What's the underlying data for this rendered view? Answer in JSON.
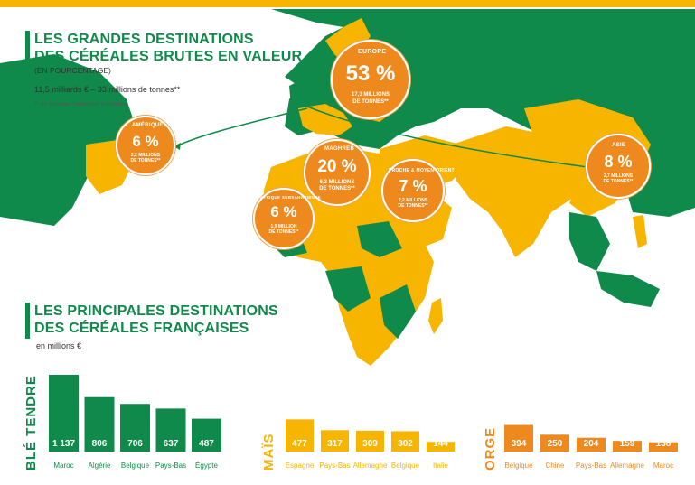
{
  "colors": {
    "green": "#0f8a4a",
    "yellow": "#f7b500",
    "orange": "#ee8a1d"
  },
  "header": {
    "title_line1": "LES GRANDES DESTINATIONS",
    "title_line2": "DES CÉRÉALES BRUTES EN VALEUR",
    "subtitle": "(EN POURCENTAGE)",
    "total": "11,5 milliards € – 33 millions de tonnes**",
    "footnote": "** de céréales françaises importées"
  },
  "section2": {
    "title_line1": "LES PRINCIPALES DESTINATIONS",
    "title_line2": "DES CÉRÉALES FRANÇAISES",
    "unit": "en millions €"
  },
  "destinations": [
    {
      "region": "EUROPE",
      "pct": "53 %",
      "desc1": "17,3 MILLIONS",
      "desc2": "DE TONNES**"
    },
    {
      "region": "AMÉRIQUE",
      "pct": "6 %",
      "desc1": "2,2 MILLIONS",
      "desc2": "DE TONNES**"
    },
    {
      "region": "MAGHREB",
      "pct": "20 %",
      "desc1": "6,2 MILLIONS",
      "desc2": "DE TONNES**"
    },
    {
      "region": "PROCHE & MOYEN-ORIENT",
      "pct": "7 %",
      "desc1": "2,2 MILLIONS",
      "desc2": "DE TONNES**"
    },
    {
      "region": "AFRIQUE SUBSAHARIENNE",
      "pct": "6 %",
      "desc1": "1,9 MILLION",
      "desc2": "DE TONNES**"
    },
    {
      "region": "ASIE",
      "pct": "8 %",
      "desc1": "2,7 MILLIONS",
      "desc2": "DE TONNES**"
    }
  ],
  "chart_data": [
    {
      "type": "bar",
      "title": "BLÉ TENDRE",
      "color": "#0f8a4a",
      "categories": [
        "Maroc",
        "Algérie",
        "Belgique",
        "Pays-Bas",
        "Égypte"
      ],
      "values": [
        1137,
        806,
        706,
        637,
        487
      ],
      "labels": [
        "1 137",
        "806",
        "706",
        "637",
        "487"
      ]
    },
    {
      "type": "bar",
      "title": "MAÏS",
      "color": "#f7b500",
      "categories": [
        "Espagne",
        "Pays-Bas",
        "Allemagne",
        "Belgique",
        "Italie"
      ],
      "values": [
        477,
        317,
        309,
        302,
        144
      ],
      "labels": [
        "477",
        "317",
        "309",
        "302",
        "144"
      ]
    },
    {
      "type": "bar",
      "title": "ORGE",
      "color": "#ee8a1d",
      "categories": [
        "Belgique",
        "Chine",
        "Pays-Bas",
        "Allemagne",
        "Maroc"
      ],
      "values": [
        394,
        250,
        204,
        159,
        138
      ],
      "labels": [
        "394",
        "250",
        "204",
        "159",
        "138"
      ]
    }
  ]
}
